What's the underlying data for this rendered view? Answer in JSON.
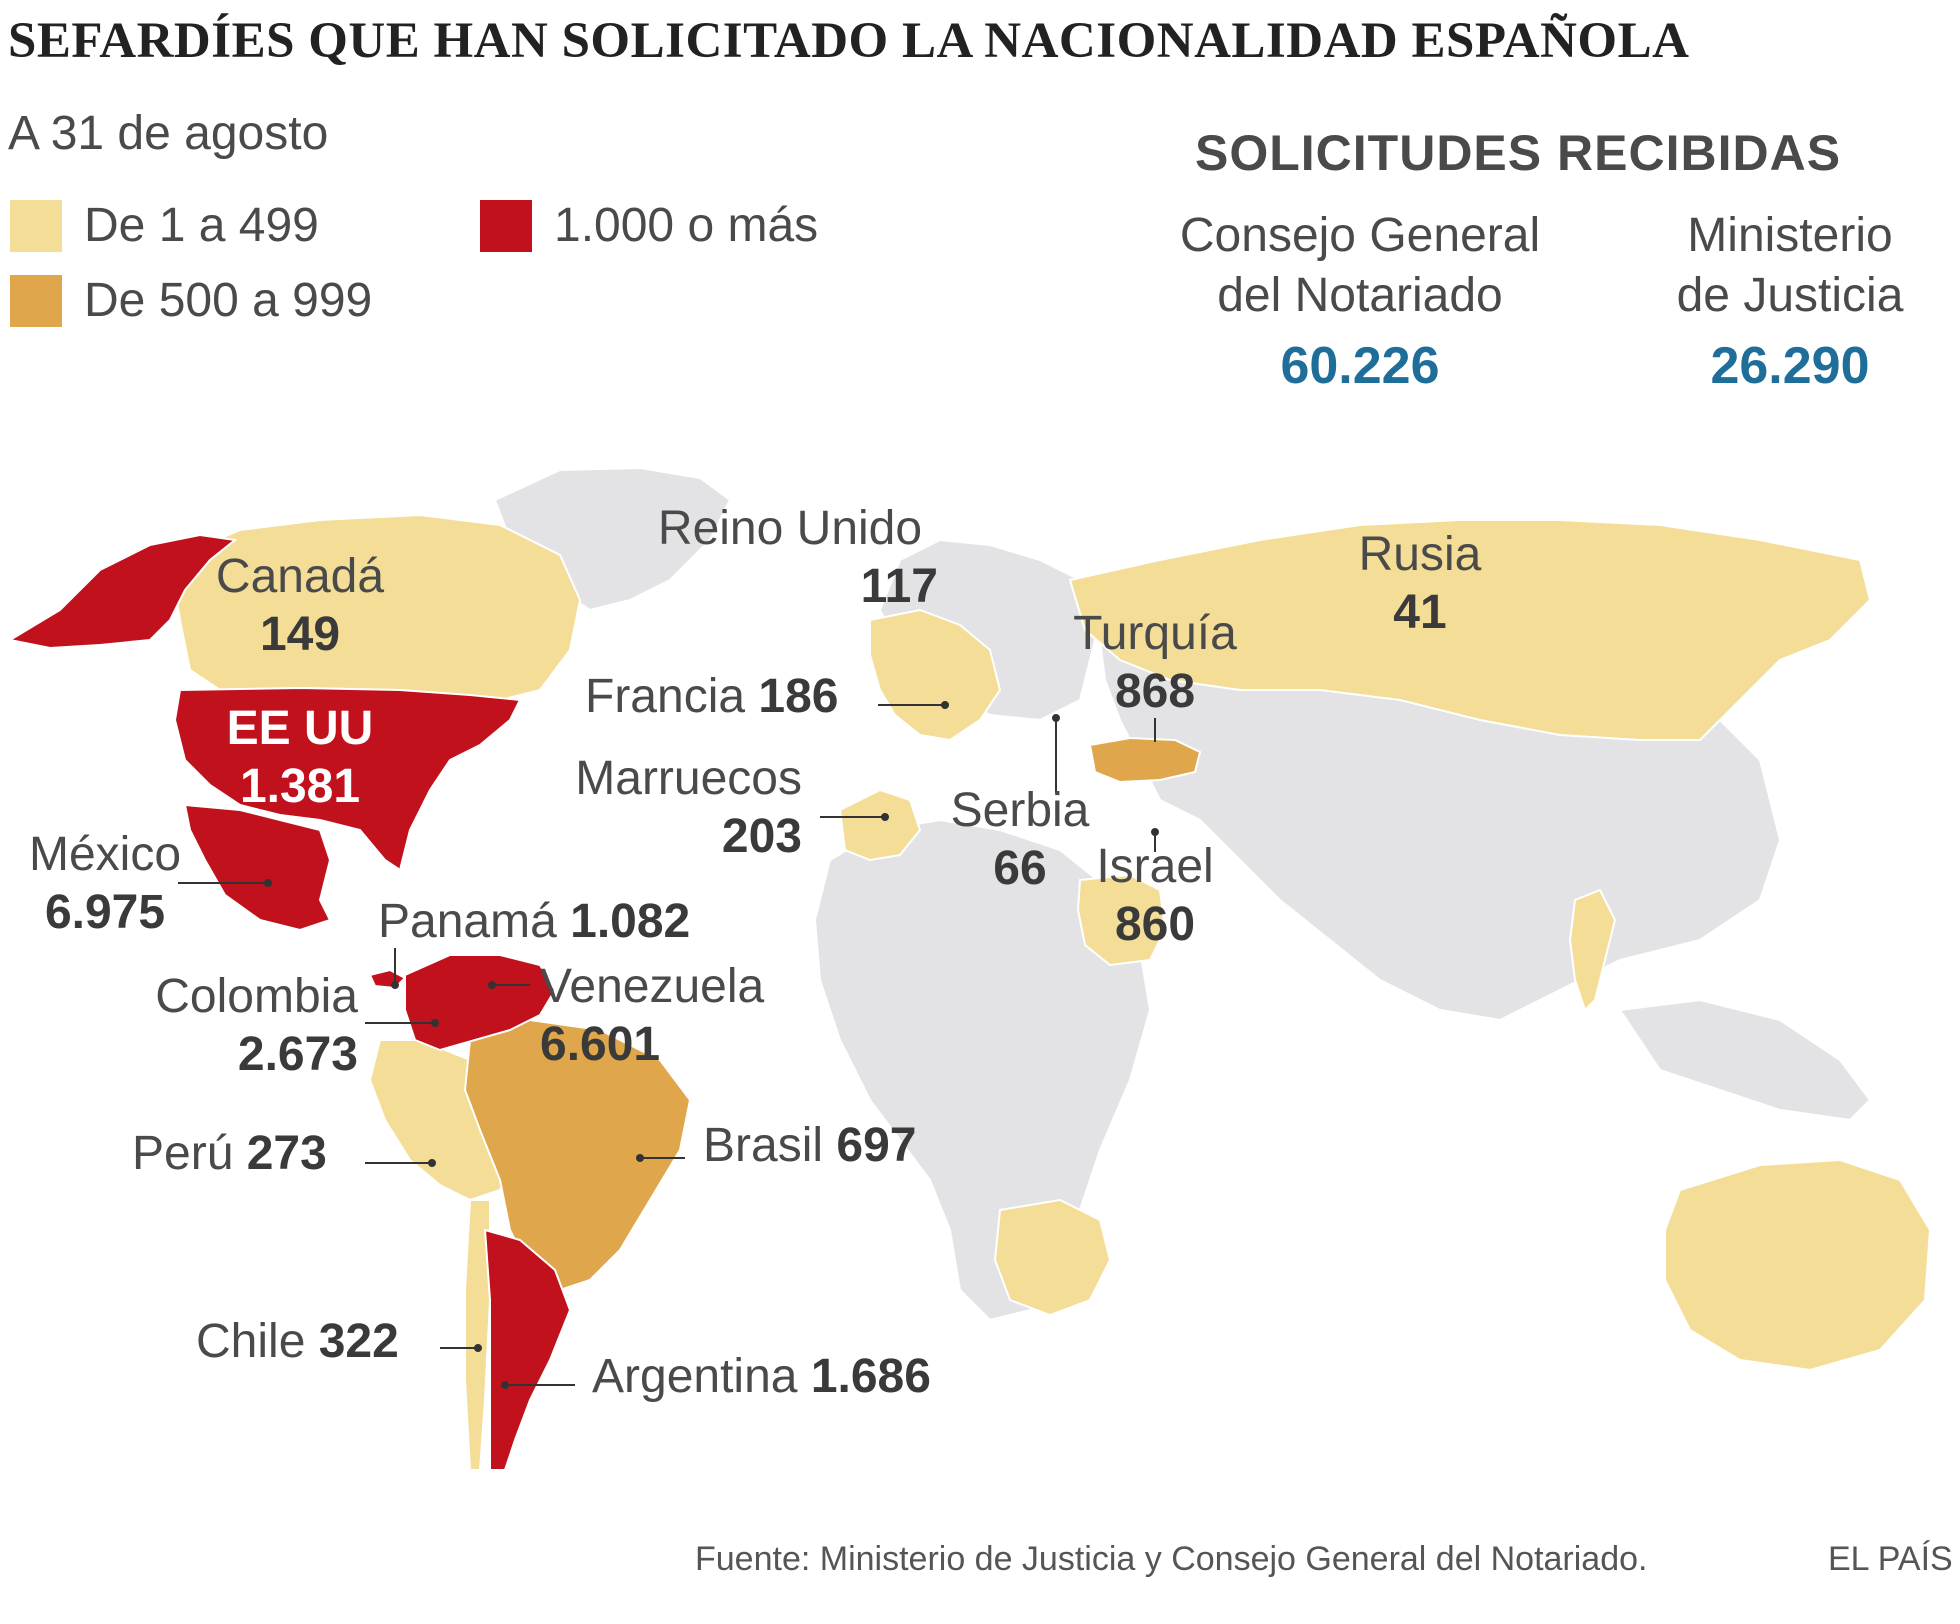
{
  "title": "SEFARDÍES QUE HAN SOLICITADO LA NACIONALIDAD ESPAÑOLA",
  "subtitle": "A 31 de agosto",
  "legend": [
    {
      "label": "De 1 a 499",
      "color": "#f3dd97"
    },
    {
      "label": "De 500 a 999",
      "color": "#e0a64b"
    },
    {
      "label": "1.000 o más",
      "color": "#c0111d"
    }
  ],
  "colors": {
    "land": "#e3e3e6",
    "low": "#f3dd97",
    "mid": "#e0a64b",
    "high": "#c0111d",
    "value_blue": "#1f6e9a"
  },
  "solicitudes": {
    "heading": "SOLICITUDES RECIBIDAS",
    "sources": [
      {
        "name_line1": "Consejo General",
        "name_line2": "del Notariado",
        "value": "60.226"
      },
      {
        "name_line1": "Ministerio",
        "name_line2": "de Justicia",
        "value": "26.290"
      }
    ]
  },
  "countries": {
    "reino_unido": {
      "name": "Reino Unido",
      "value": "117"
    },
    "canada": {
      "name": "Canadá",
      "value": "149"
    },
    "rusia": {
      "name": "Rusia",
      "value": "41"
    },
    "turquia": {
      "name": "Turquía",
      "value": "868"
    },
    "eeuu": {
      "name": "EE UU",
      "value": "1.381"
    },
    "francia": {
      "name": "Francia",
      "value": "186"
    },
    "marruecos": {
      "name": "Marruecos",
      "value": "203"
    },
    "serbia": {
      "name": "Serbia",
      "value": "66"
    },
    "israel": {
      "name": "Israel",
      "value": "860"
    },
    "mexico": {
      "name": "México",
      "value": "6.975"
    },
    "panama": {
      "name": "Panamá",
      "value": "1.082"
    },
    "colombia": {
      "name": "Colombia",
      "value": "2.673"
    },
    "venezuela": {
      "name": "Venezuela",
      "value": "6.601"
    },
    "peru": {
      "name": "Perú",
      "value": "273"
    },
    "brasil": {
      "name": "Brasil",
      "value": "697"
    },
    "chile": {
      "name": "Chile",
      "value": "322"
    },
    "argentina": {
      "name": "Argentina",
      "value": "1.686"
    }
  },
  "footer": {
    "source": "Fuente: Ministerio de Justicia y Consejo General del Notariado.",
    "brand": "EL PAÍS"
  }
}
